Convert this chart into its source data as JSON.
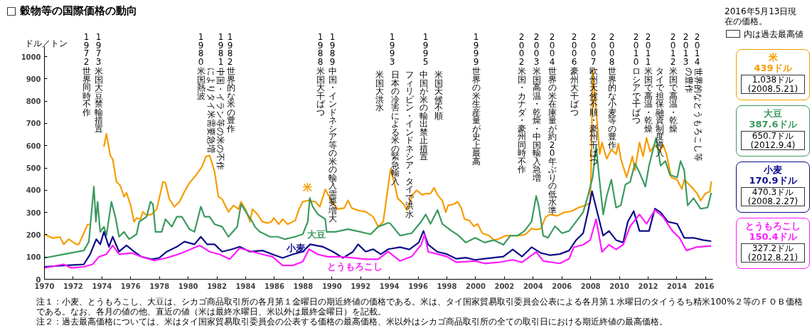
{
  "chart_data": {
    "type": "line",
    "title": "□ 穀物等の国際価格の動向",
    "ylabel": "ドル／トン",
    "xlim": [
      1970,
      2016.5
    ],
    "ylim": [
      0,
      1045
    ],
    "xticks": [
      1970,
      1972,
      1974,
      1976,
      1978,
      1980,
      1982,
      1984,
      1986,
      1988,
      1990,
      1992,
      1994,
      1996,
      1998,
      2000,
      2002,
      2004,
      2006,
      2008,
      2010,
      2012,
      2014,
      2016
    ],
    "yticks": [
      0,
      100,
      200,
      300,
      400,
      500,
      600,
      700,
      800,
      900,
      1000
    ],
    "grid": false,
    "legend": "bottom",
    "line_style": "solid",
    "series": [
      {
        "name": "米",
        "color": "#f59d00",
        "x": [
          1970.02,
          1970.55,
          1971.07,
          1971.34,
          1971.69,
          1972.21,
          1972.39,
          1972.74,
          1973.0,
          1973.18,
          1973.6,
          1974.14,
          1974.31,
          1974.58,
          1974.75,
          1975.01,
          1975.27,
          1975.54,
          1975.71,
          1975.98,
          1976.24,
          1976.41,
          1976.68,
          1976.85,
          1977.11,
          1977.46,
          1977.81,
          1978.25,
          1978.42,
          1978.69,
          1979.04,
          1979.39,
          1979.74,
          1980.09,
          1980.53,
          1980.97,
          1981.23,
          1981.49,
          1981.84,
          1982.1,
          1982.36,
          1982.8,
          1983.15,
          1983.5,
          1983.68,
          1984.03,
          1984.3,
          1984.47,
          1984.82,
          1985.17,
          1985.52,
          1985.78,
          1985.96,
          1986.31,
          1986.57,
          1986.92,
          1987.45,
          1987.71,
          1987.97,
          1988.32,
          1988.84,
          1989.16,
          1989.54,
          1989.89,
          1990.41,
          1990.86,
          1991.12,
          1991.38,
          1991.82,
          1992.35,
          1992.87,
          1993.22,
          1993.57,
          1994.08,
          1994.33,
          1994.57,
          1994.98,
          1995.23,
          1995.55,
          1995.88,
          1996.29,
          1996.53,
          1996.86,
          1997.11,
          1997.35,
          1997.68,
          1997.92,
          1998.09,
          1998.5,
          1998.74,
          1998.99,
          1999.23,
          1999.56,
          1999.88,
          2000.13,
          2000.46,
          2000.95,
          2001.27,
          2001.6,
          2002.09,
          2002.58,
          2003.07,
          2003.48,
          2003.89,
          2004.21,
          2004.54,
          2004.87,
          2005.19,
          2005.68,
          2006.18,
          2006.67,
          2007.16,
          2007.65,
          2007.97,
          2008.05,
          2008.14,
          2008.63,
          2008.79,
          2009.12,
          2009.44,
          2009.77,
          2009.93,
          2010.1,
          2010.5,
          2010.91,
          2011.08,
          2011.4,
          2011.65,
          2011.89,
          2012.14,
          2012.47,
          2012.79,
          2013.04,
          2013.28,
          2013.61,
          2014.02,
          2014.35,
          2014.51,
          2015.0,
          2015.41,
          2015.65,
          2015.98,
          2016.31,
          2016.39
        ],
        "values": [
          202,
          185,
          190,
          157,
          180,
          157,
          157,
          207,
          246,
          246,
          null,
          595,
          654,
          556,
          539,
          438,
          421,
          371,
          388,
          337,
          258,
          275,
          270,
          303,
          287,
          292,
          315,
          438,
          433,
          360,
          326,
          348,
          393,
          433,
          466,
          506,
          551,
          556,
          483,
          371,
          360,
          303,
          331,
          315,
          348,
          309,
          258,
          315,
          292,
          258,
          253,
          258,
          275,
          247,
          270,
          247,
          264,
          315,
          348,
          354,
          348,
          326,
          404,
          360,
          315,
          320,
          354,
          320,
          309,
          303,
          281,
          236,
          258,
          495,
          437,
          364,
          338,
          311,
          374,
          400,
          379,
          385,
          385,
          411,
          379,
          353,
          301,
          332,
          338,
          348,
          322,
          270,
          264,
          238,
          249,
          207,
          196,
          176,
          181,
          196,
          196,
          196,
          202,
          228,
          223,
          228,
          280,
          291,
          285,
          301,
          306,
          322,
          332,
          343,
          541,
          940,
          562,
          614,
          541,
          583,
          562,
          609,
          541,
          458,
          552,
          489,
          614,
          552,
          635,
          573,
          604,
          573,
          604,
          562,
          458,
          447,
          405,
          447,
          416,
          385,
          353,
          385,
          395,
          439
        ]
      },
      {
        "name": "大豆",
        "color": "#3d9a60",
        "x": [
          1970.02,
          1971.34,
          1972.74,
          1973.09,
          1973.44,
          1973.58,
          1973.7,
          1973.88,
          1974.14,
          1974.31,
          1974.66,
          1974.93,
          1975.19,
          1975.54,
          1975.89,
          1976.41,
          1976.59,
          1977.11,
          1977.38,
          1977.55,
          1977.73,
          1978.16,
          1978.42,
          1978.86,
          1979.21,
          1979.56,
          1980.09,
          1980.44,
          1980.88,
          1981.14,
          1981.49,
          1981.84,
          1982.36,
          1982.8,
          1983.41,
          1983.68,
          1984.12,
          1984.47,
          1984.64,
          1984.99,
          1985.69,
          1986.22,
          1986.74,
          1987.44,
          1987.97,
          1988.32,
          1988.46,
          1988.67,
          1989.02,
          1989.54,
          1989.63,
          1990.24,
          1991.12,
          1991.99,
          1992.69,
          1993.22,
          1993.92,
          1994.08,
          1994.74,
          1995.55,
          1996.21,
          1996.53,
          1996.86,
          1997.35,
          1997.68,
          1998.33,
          1998.82,
          1999.31,
          1999.97,
          2000.62,
          2001.27,
          2001.93,
          2002.42,
          2002.91,
          2003.4,
          2003.89,
          2004.21,
          2004.38,
          2004.7,
          2005.03,
          2005.52,
          2006.01,
          2006.5,
          2006.99,
          2007.48,
          2007.81,
          2008.14,
          2008.38,
          2008.63,
          2008.87,
          2009.12,
          2009.44,
          2009.77,
          2010.1,
          2010.42,
          2010.75,
          2011.08,
          2011.4,
          2011.81,
          2012.06,
          2012.55,
          2012.87,
          2013.2,
          2013.53,
          2014.02,
          2014.26,
          2014.51,
          2014.75,
          2015.16,
          2015.65,
          2016.14,
          2016.39
        ],
        "values": [
          96,
          112,
          129,
          169,
          416,
          258,
          348,
          213,
          236,
          197,
          348,
          281,
          191,
          213,
          180,
          202,
          258,
          281,
          348,
          337,
          213,
          213,
          270,
          236,
          281,
          281,
          225,
          213,
          326,
          281,
          281,
          247,
          236,
          191,
          236,
          337,
          292,
          258,
          236,
          213,
          191,
          191,
          180,
          191,
          202,
          258,
          365,
          326,
          292,
          270,
          213,
          213,
          225,
          213,
          202,
          236,
          253,
          249,
          196,
          207,
          259,
          291,
          249,
          311,
          249,
          217,
          196,
          165,
          186,
          165,
          176,
          155,
          196,
          196,
          217,
          259,
          374,
          332,
          196,
          186,
          238,
          207,
          217,
          259,
          301,
          374,
          458,
          599,
          437,
          291,
          374,
          447,
          322,
          332,
          426,
          437,
          520,
          479,
          416,
          510,
          635,
          510,
          531,
          468,
          458,
          531,
          489,
          332,
          364,
          317,
          322,
          388
        ]
      },
      {
        "name": "小麦",
        "color": "#0c0c8a",
        "x": [
          1970.02,
          1971.34,
          1972.74,
          1973.18,
          1973.61,
          1973.88,
          1974.14,
          1974.49,
          1974.75,
          1975.19,
          1975.71,
          1976.24,
          1976.76,
          1977.46,
          1977.99,
          1978.51,
          1979.21,
          1979.74,
          1980.44,
          1980.88,
          1981.32,
          1981.84,
          1982.36,
          1983.06,
          1983.59,
          1984.29,
          1985.17,
          1985.87,
          1986.57,
          1987.27,
          1987.97,
          1988.49,
          1989.37,
          1990.07,
          1990.77,
          1991.47,
          1991.82,
          1992.35,
          1992.87,
          1993.4,
          1993.92,
          1994.74,
          1995.39,
          1996.04,
          1996.37,
          1996.7,
          1997.35,
          1998.0,
          1998.66,
          1999.31,
          1999.97,
          2000.62,
          2001.27,
          2001.93,
          2002.58,
          2003.23,
          2003.89,
          2004.54,
          2005.19,
          2005.85,
          2006.5,
          2006.99,
          2007.48,
          2007.81,
          2008.1,
          2008.46,
          2008.87,
          2009.28,
          2009.77,
          2010.26,
          2010.59,
          2011.0,
          2011.4,
          2012.06,
          2012.47,
          2012.87,
          2013.36,
          2014.02,
          2014.51,
          2015.16,
          2015.82,
          2016.39
        ],
        "values": [
          56,
          62,
          67,
          112,
          180,
          157,
          213,
          146,
          191,
          124,
          152,
          124,
          101,
          90,
          96,
          124,
          146,
          169,
          157,
          191,
          157,
          157,
          124,
          135,
          146,
          124,
          129,
          112,
          96,
          112,
          124,
          157,
          146,
          124,
          96,
          124,
          157,
          124,
          135,
          112,
          135,
          144,
          134,
          165,
          217,
          155,
          123,
          113,
          92,
          97,
          87,
          92,
          97,
          102,
          134,
          102,
          144,
          118,
          108,
          113,
          129,
          176,
          207,
          301,
          395,
          301,
          196,
          217,
          176,
          165,
          259,
          306,
          217,
          217,
          317,
          301,
          259,
          249,
          186,
          186,
          176,
          171
        ]
      },
      {
        "name": "とうもろこし",
        "color": "#ff1cff",
        "x": [
          1970.02,
          1971.34,
          1971.86,
          1972.74,
          1973.35,
          1973.79,
          1974.31,
          1974.75,
          1975.19,
          1976.07,
          1976.76,
          1977.64,
          1978.51,
          1979.56,
          1980.79,
          1981.49,
          1982.19,
          1982.89,
          1983.59,
          1984.47,
          1985.17,
          1985.87,
          1986.57,
          1987.27,
          1987.97,
          1988.41,
          1989.02,
          1989.72,
          1990.59,
          1991.47,
          1992.35,
          1993.22,
          1993.92,
          1994.74,
          1995.55,
          1996.21,
          1996.45,
          1996.7,
          1997.35,
          1998.0,
          1998.66,
          1999.97,
          2000.62,
          2001.6,
          2002.58,
          2003.23,
          2004.21,
          2004.7,
          2005.85,
          2006.5,
          2006.83,
          2007.48,
          2007.97,
          2008.38,
          2008.79,
          2009.28,
          2009.77,
          2010.26,
          2010.75,
          2011.4,
          2011.89,
          2012.47,
          2013.04,
          2013.69,
          2014.18,
          2014.67,
          2015.33,
          2016.39
        ],
        "values": [
          51,
          67,
          51,
          56,
          67,
          101,
          112,
          152,
          112,
          118,
          101,
          84,
          96,
          118,
          152,
          124,
          112,
          90,
          140,
          124,
          112,
          101,
          62,
          62,
          79,
          135,
          112,
          101,
          101,
          96,
          90,
          90,
          124,
          82,
          102,
          155,
          202,
          123,
          113,
          102,
          76,
          82,
          71,
          76,
          87,
          76,
          123,
          82,
          71,
          92,
          144,
          155,
          176,
          270,
          123,
          155,
          134,
          155,
          238,
          291,
          249,
          311,
          280,
          217,
          186,
          129,
          144,
          150
        ]
      }
    ],
    "annotations": [
      "2016年5月13日現在の価格。",
      "内は過去最高値",
      "439ドル",
      "1,038ドル",
      "(2008.5.21)",
      "387.6ドル",
      "650.7ドル",
      "(2012.9.4)",
      "170.9ドル",
      "470.3ドル",
      "(2008.2.27)",
      "150.4ドル",
      "327.2ドル",
      "(2012.8.21)",
      "注１：小麦、とうもろこし、大豆は、シカゴ商品取引所の各月第１金曜日の期近終値の価格である。米は、タイ国家貿易取引委員会公表による各月第１水曜日のタイうるち精米100%２等のＦＯＢ価格である。なお、各月の値の他、直近の値（米は最終水曜日、米以外は最終金曜日）を記載。",
      "注２：過去最高価格については、米はタイ国家貿易取引委員会の公表する価格の最高価格、米以外はシカゴ商品取引所の全ての取引日における期近終値の最高価格。",
      "1972",
      "世界同時不作",
      "1973",
      "米国大豆禁輸措置",
      "1980",
      "米国熱波",
      "1981",
      "中国・イラン等の米の不作によりタイ米需要急増",
      "1982",
      "世界的な米の豊作",
      "1988",
      "米国大干ばつ",
      "1989",
      "中国・インドネシア等の米の輸入需要増大",
      "1993",
      "米国大洪水",
      "日本の冷害による米の緊急輸入",
      "1995",
      "フィリピン・インドネシア・タイで洪水",
      "中国が米の輸出禁止措置",
      "米国天候不順",
      "1999",
      "世界の米生産量が史上最高",
      "2002",
      "米国・カナダ・豪州同時不作",
      "2003",
      "米国高温・乾燥・中国輸入急増",
      "2004",
      "世界の米在庫量が約20年ぶりの低水準",
      "2006",
      "豪州大干ばつ",
      "2007",
      "欧州天候不順・豪州干ばつ",
      "2008",
      "世界的な小麦等の豊作",
      "2010",
      "ロシアで干ばつ",
      "2011",
      "米国で高温・乾燥",
      "2012",
      "米国で高温・乾燥",
      "タイで担保融資制度導入",
      "2013",
      "2014",
      "世界的なとうもろこし等の豊作"
    ]
  }
}
